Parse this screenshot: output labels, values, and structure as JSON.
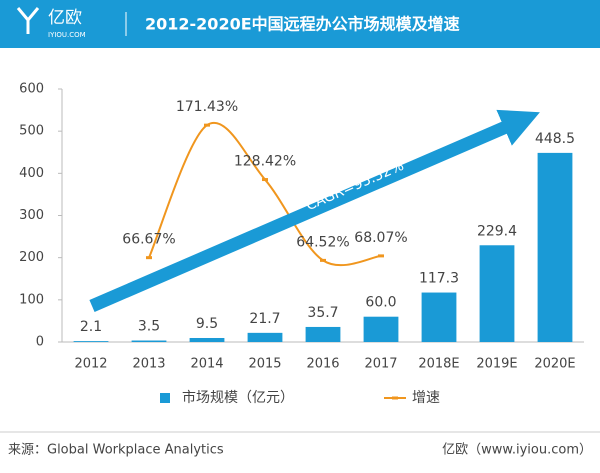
{
  "header": {
    "logo": "亿欧",
    "domain": "IYIOU.COM",
    "title": "2012-2020E中国远程办公市场规模及增速"
  },
  "chart_data": {
    "type": "bar",
    "categories": [
      "2012",
      "2013",
      "2014",
      "2015",
      "2016",
      "2017",
      "2018E",
      "2019E",
      "2020E"
    ],
    "ylim": [
      0,
      600
    ],
    "yticks": [
      0,
      100,
      200,
      300,
      400,
      500,
      600
    ],
    "y2lim": [
      0,
      200
    ],
    "legend": "bottom",
    "annotation": "CAGR=95.52%",
    "series": [
      {
        "name": "市场规模（亿元）",
        "type": "bar",
        "color": "#1a9ad6",
        "values": [
          2.1,
          3.5,
          9.5,
          21.7,
          35.7,
          60.0,
          117.3,
          229.4,
          448.5
        ],
        "value_labels": [
          "2.1",
          "3.5",
          "9.5",
          "21.7",
          "35.7",
          "60.0",
          "117.3",
          "229.4",
          "448.5"
        ]
      },
      {
        "name": "增速",
        "type": "line",
        "color": "#f0961e",
        "axis": "y2",
        "values": [
          null,
          66.67,
          171.43,
          128.42,
          64.52,
          68.07,
          null,
          null,
          null
        ],
        "value_labels": [
          null,
          "66.67%",
          "171.43%",
          "128.42%",
          "64.52%",
          "68.07%",
          null,
          null,
          null
        ]
      }
    ]
  },
  "footer": {
    "source": "来源：Global Workplace Analytics",
    "credit": "亿欧（www.iyiou.com）"
  }
}
